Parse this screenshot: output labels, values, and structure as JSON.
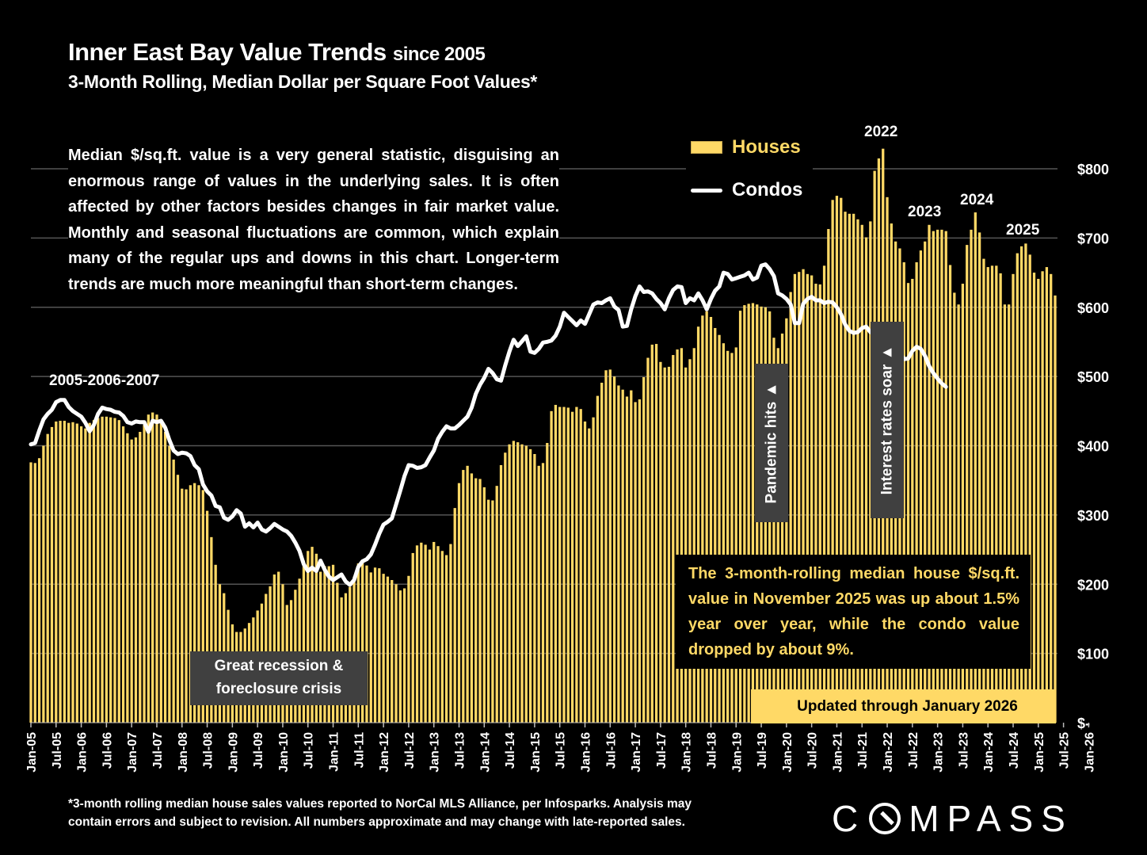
{
  "header": {
    "title": "Inner East Bay Value Trends",
    "title_suffix": "since 2005",
    "subtitle": "3-Month Rolling, Median Dollar per Square Foot Values*"
  },
  "note": "Median $/sq.ft. value is a very general statistic, disguising an enormous range of values in the underlying sales. It is often affected by other factors besides changes in fair market value. Monthly and seasonal fluctuations are common, which explain many of the regular ups and downs in this chart. Longer-term trends are much more meaningful than short-term changes.",
  "legend": {
    "houses": "Houses",
    "condos": "Condos"
  },
  "annotations": {
    "y2005_2007": "2005-2006-2007",
    "y2022": "2022",
    "y2023": "2023",
    "y2024": "2024",
    "y2025": "2025",
    "recession_line1": "Great recession &",
    "recession_line2": "foreclosure crisis",
    "pandemic": "Pandemic hits ▲",
    "rates": "Interest rates soar ▲",
    "callout": "The 3-month-rolling median house $/sq.ft. value in November 2025 was up about 1.5% year over year, while the condo value dropped by about 9%.",
    "updated": "Updated through January 2026"
  },
  "footnote_line1": "*3-month rolling median house sales values reported to NorCal MLS Alliance, per Infosparks. Analysis may",
  "footnote_line2": "contain errors and subject to revision. All numbers approximate and may change with late-reported sales.",
  "logo": {
    "pre": "C",
    "post": "MPASS"
  },
  "colors": {
    "houses": "#ffd966",
    "condos": "#ffffff",
    "background": "#000000",
    "grid": "#555555",
    "annotation_box": "#404040"
  },
  "chart_data": {
    "type": "bar",
    "title": "Inner East Bay Value Trends since 2005",
    "subtitle": "3-Month Rolling, Median Dollar per Square Foot Values*",
    "xlabel": "",
    "ylabel": "",
    "ylim": [
      0,
      800
    ],
    "y_ticks": [
      "$-",
      "$100",
      "$200",
      "$300",
      "$400",
      "$500",
      "$600",
      "$700",
      "$800"
    ],
    "y_tick_values": [
      0,
      100,
      200,
      300,
      400,
      500,
      600,
      700,
      800
    ],
    "y_axis_side": "right",
    "grid": true,
    "legend_position": "top-center",
    "x_start": "Jan-05",
    "x_end": "Jan-26",
    "x_tick_labels": [
      "Jan-05",
      "Jul-05",
      "Jan-06",
      "Jul-06",
      "Jan-07",
      "Jul-07",
      "Jan-08",
      "Jul-08",
      "Jan-09",
      "Jul-09",
      "Jan-10",
      "Jul-10",
      "Jan-11",
      "Jul-11",
      "Jan-12",
      "Jul-12",
      "Jan-13",
      "Jul-13",
      "Jan-14",
      "Jul-14",
      "Jan-15",
      "Jul-15",
      "Jan-16",
      "Jul-16",
      "Jan-17",
      "Jul-17",
      "Jan-18",
      "Jul-18",
      "Jan-19",
      "Jul-19",
      "Jan-20",
      "Jul-20",
      "Jan-21",
      "Jul-21",
      "Jan-22",
      "Jul-22",
      "Jan-23",
      "Jul-23",
      "Jan-24",
      "Jul-24",
      "Jan-25",
      "Jul-25",
      "Jan-26"
    ],
    "series": [
      {
        "name": "Houses",
        "type": "bar",
        "values": [
          376,
          375,
          382,
          400,
          417,
          427,
          435,
          436,
          436,
          433,
          434,
          432,
          428,
          425,
          433,
          437,
          440,
          442,
          442,
          441,
          440,
          437,
          428,
          418,
          409,
          412,
          420,
          430,
          445,
          448,
          445,
          437,
          420,
          400,
          380,
          358,
          338,
          337,
          343,
          346,
          343,
          336,
          306,
          268,
          228,
          200,
          187,
          163,
          142,
          131,
          131,
          136,
          144,
          152,
          162,
          172,
          186,
          197,
          214,
          218,
          200,
          170,
          177,
          192,
          208,
          234,
          248,
          254,
          244,
          218,
          226,
          226,
          228,
          202,
          181,
          187,
          196,
          211,
          230,
          232,
          227,
          217,
          224,
          223,
          215,
          211,
          206,
          200,
          191,
          194,
          212,
          245,
          256,
          260,
          257,
          250,
          261,
          255,
          248,
          242,
          258,
          310,
          346,
          365,
          371,
          360,
          353,
          352,
          340,
          322,
          321,
          342,
          372,
          390,
          402,
          407,
          405,
          402,
          400,
          395,
          388,
          371,
          375,
          404,
          450,
          459,
          456,
          456,
          455,
          449,
          456,
          453,
          435,
          425,
          441,
          472,
          491,
          509,
          510,
          500,
          487,
          481,
          471,
          480,
          463,
          467,
          499,
          527,
          546,
          547,
          521,
          513,
          514,
          531,
          539,
          541,
          513,
          525,
          541,
          572,
          588,
          594,
          586,
          570,
          560,
          548,
          537,
          534,
          542,
          595,
          603,
          605,
          606,
          604,
          601,
          600,
          594,
          556,
          541,
          562,
          584,
          622,
          648,
          651,
          655,
          648,
          646,
          634,
          633,
          660,
          713,
          755,
          761,
          758,
          738,
          735,
          735,
          727,
          719,
          701,
          724,
          797,
          815,
          829,
          759,
          721,
          695,
          685,
          665,
          635,
          641,
          665,
          682,
          695,
          719,
          710,
          712,
          712,
          710,
          661,
          621,
          604,
          634,
          690,
          712,
          737,
          708,
          670,
          658,
          660,
          660,
          649,
          604,
          604,
          648,
          678,
          688,
          692,
          676,
          650,
          641,
          652,
          658,
          648,
          617
        ]
      },
      {
        "name": "Condos",
        "type": "line",
        "values": [
          402,
          404,
          422,
          438,
          446,
          452,
          463,
          466,
          466,
          456,
          450,
          446,
          442,
          433,
          421,
          430,
          446,
          455,
          453,
          452,
          449,
          448,
          443,
          434,
          432,
          435,
          434,
          434,
          420,
          436,
          434,
          436,
          426,
          408,
          393,
          388,
          390,
          389,
          385,
          372,
          366,
          344,
          334,
          328,
          313,
          311,
          296,
          293,
          298,
          307,
          302,
          283,
          288,
          282,
          289,
          279,
          276,
          281,
          287,
          283,
          279,
          276,
          270,
          260,
          248,
          229,
          219,
          224,
          219,
          234,
          221,
          211,
          206,
          210,
          214,
          204,
          199,
          206,
          225,
          233,
          236,
          243,
          257,
          273,
          286,
          290,
          295,
          315,
          335,
          356,
          372,
          371,
          368,
          369,
          372,
          383,
          393,
          410,
          420,
          428,
          425,
          425,
          430,
          436,
          442,
          455,
          475,
          488,
          498,
          511,
          505,
          496,
          494,
          516,
          536,
          553,
          544,
          551,
          558,
          536,
          534,
          540,
          549,
          550,
          552,
          559,
          572,
          592,
          586,
          580,
          574,
          581,
          576,
          590,
          604,
          607,
          606,
          610,
          613,
          601,
          596,
          572,
          573,
          597,
          616,
          630,
          622,
          623,
          620,
          612,
          606,
          597,
          613,
          625,
          630,
          629,
          606,
          613,
          610,
          620,
          610,
          597,
          612,
          624,
          630,
          650,
          648,
          640,
          642,
          644,
          646,
          650,
          640,
          643,
          660,
          662,
          655,
          645,
          620,
          617,
          612,
          604,
          577,
          577,
          605,
          612,
          615,
          610,
          610,
          606,
          608,
          607,
          600,
          590,
          575,
          566,
          563,
          564,
          570,
          572,
          564,
          566,
          562,
          572,
          572,
          569,
          552,
          535,
          525,
          526,
          537,
          543,
          540,
          530,
          515,
          505,
          497,
          490,
          485
        ]
      }
    ]
  }
}
